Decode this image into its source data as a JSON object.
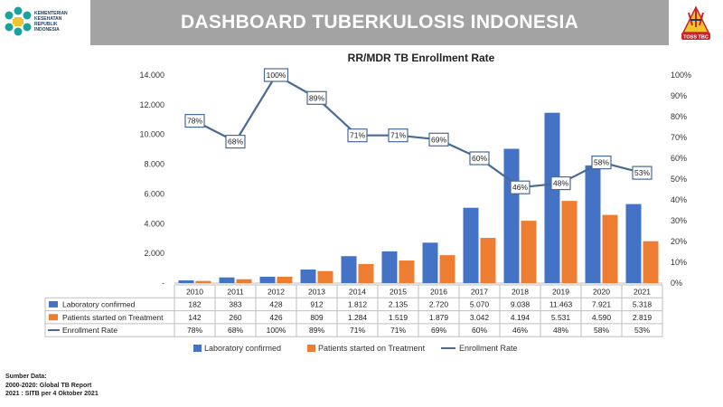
{
  "header": {
    "title": "DASHBOARD TUBERKULOSIS INDONESIA",
    "logo_lines": [
      "KEMENTERIAN",
      "KESEHATAN",
      "REPUBLIK",
      "INDONESIA"
    ],
    "badge_text": "TOSS TBC"
  },
  "colors": {
    "header_bar": "#a3a3a3",
    "lab_confirmed": "#4472c4",
    "started_treatment": "#ed7d31",
    "enrollment_line": "#4a6a96",
    "logo_teal": "#1aa39c",
    "logo_yellow": "#f2c230",
    "badge_red": "#c9242b"
  },
  "chart_data": {
    "type": "bar",
    "title": "RR/MDR TB Enrollment Rate",
    "categories": [
      "2010",
      "2011",
      "2012",
      "2013",
      "2014",
      "2015",
      "2016",
      "2017",
      "2018",
      "2019",
      "2020",
      "2021"
    ],
    "series": [
      {
        "name": "Laboratory confirmed",
        "values": [
          182,
          383,
          428,
          912,
          1812,
          2135,
          2720,
          5070,
          9038,
          11463,
          7921,
          5318
        ],
        "labels": [
          "182",
          "383",
          "428",
          "912",
          "1.812",
          "2.135",
          "2.720",
          "5.070",
          "9.038",
          "11.463",
          "7.921",
          "5.318"
        ]
      },
      {
        "name": "Patients started on Treatment",
        "values": [
          142,
          260,
          426,
          809,
          1284,
          1519,
          1879,
          3042,
          4194,
          5531,
          4590,
          2819
        ],
        "labels": [
          "142",
          "260",
          "426",
          "809",
          "1.284",
          "1.519",
          "1.879",
          "3.042",
          "4.194",
          "5.531",
          "4.590",
          "2.819"
        ]
      },
      {
        "name": "Enrollment Rate",
        "type": "line",
        "axis": "right",
        "values": [
          78,
          68,
          100,
          89,
          71,
          71,
          69,
          60,
          46,
          48,
          58,
          53
        ],
        "labels": [
          "78%",
          "68%",
          "100%",
          "89%",
          "71%",
          "71%",
          "69%",
          "60%",
          "46%",
          "48%",
          "58%",
          "53%"
        ]
      }
    ],
    "left_axis": {
      "ylim": [
        0,
        14000
      ],
      "ticks": [
        "-",
        "2.000",
        "4.000",
        "6.000",
        "8.000",
        "10.000",
        "12.000",
        "14.000"
      ]
    },
    "right_axis": {
      "ylim": [
        0,
        100
      ],
      "ticks": [
        "0%",
        "10%",
        "20%",
        "30%",
        "40%",
        "50%",
        "60%",
        "70%",
        "80%",
        "90%",
        "100%"
      ]
    },
    "grid": false,
    "legend": "bottom",
    "legend_items": [
      "Laboratory confirmed",
      "Patients started on Treatment",
      "Enrollment Rate"
    ]
  },
  "source": {
    "lines": [
      "Sumber Data:",
      "2000-2020:  Global TB Report",
      "2021 : SITB per 4 Oktober 2021"
    ]
  }
}
